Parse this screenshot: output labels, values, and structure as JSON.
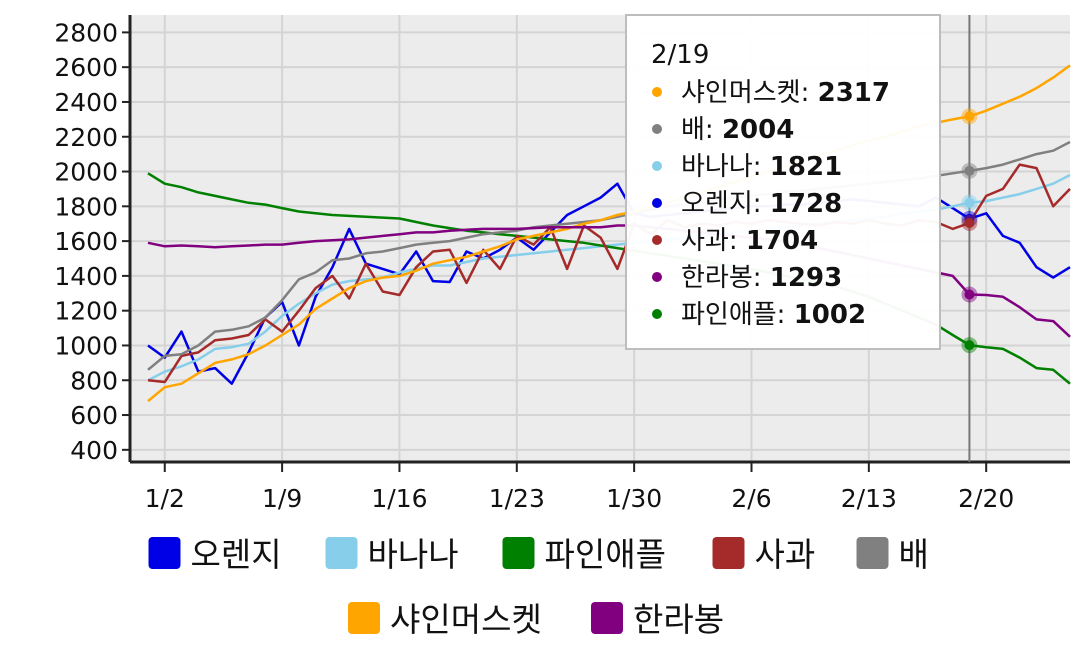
{
  "chart_data": {
    "type": "line",
    "x_labels": [
      "1/2",
      "1/9",
      "1/16",
      "1/23",
      "1/30",
      "2/6",
      "2/13",
      "2/20"
    ],
    "x": [
      "1/1",
      "1/2",
      "1/3",
      "1/4",
      "1/5",
      "1/6",
      "1/7",
      "1/8",
      "1/9",
      "1/10",
      "1/11",
      "1/12",
      "1/13",
      "1/14",
      "1/15",
      "1/16",
      "1/17",
      "1/18",
      "1/19",
      "1/20",
      "1/21",
      "1/22",
      "1/23",
      "1/24",
      "1/25",
      "1/26",
      "1/27",
      "1/28",
      "1/29",
      "1/30",
      "1/31",
      "2/1",
      "2/2",
      "2/3",
      "2/4",
      "2/5",
      "2/6",
      "2/7",
      "2/8",
      "2/9",
      "2/10",
      "2/11",
      "2/12",
      "2/13",
      "2/14",
      "2/15",
      "2/16",
      "2/17",
      "2/18",
      "2/19",
      "2/20",
      "2/21",
      "2/22",
      "2/23",
      "2/24",
      "2/25"
    ],
    "y_ticks": [
      400,
      600,
      800,
      1000,
      1200,
      1400,
      1600,
      1800,
      2000,
      2200,
      2400,
      2600,
      2800
    ],
    "ylim": [
      330,
      2900
    ],
    "grid": true,
    "legend_position": "bottom",
    "series": [
      {
        "name": "오렌지",
        "color": "#0000e6",
        "values": [
          1000,
          930,
          1080,
          850,
          870,
          780,
          960,
          1160,
          1250,
          1000,
          1280,
          1450,
          1670,
          1470,
          1440,
          1410,
          1540,
          1370,
          1365,
          1540,
          1500,
          1550,
          1620,
          1550,
          1650,
          1750,
          1800,
          1850,
          1930,
          1760,
          1740,
          1750,
          1760,
          1770,
          1780,
          1790,
          1800,
          1800,
          1810,
          1810,
          1820,
          1830,
          1840,
          1830,
          1820,
          1810,
          1800,
          1850,
          1790,
          1728,
          1760,
          1630,
          1590,
          1450,
          1390,
          1450
        ]
      },
      {
        "name": "바나나",
        "color": "#87ceeb",
        "values": [
          800,
          850,
          880,
          920,
          980,
          990,
          1010,
          1080,
          1170,
          1240,
          1300,
          1350,
          1370,
          1380,
          1390,
          1420,
          1440,
          1460,
          1460,
          1480,
          1500,
          1510,
          1520,
          1530,
          1540,
          1550,
          1560,
          1570,
          1580,
          1590,
          1600,
          1610,
          1620,
          1630,
          1640,
          1650,
          1660,
          1670,
          1680,
          1690,
          1700,
          1710,
          1720,
          1730,
          1740,
          1760,
          1770,
          1780,
          1800,
          1821,
          1830,
          1850,
          1870,
          1900,
          1930,
          1980
        ]
      },
      {
        "name": "파인애플",
        "color": "#008000",
        "values": [
          1990,
          1930,
          1910,
          1880,
          1860,
          1840,
          1820,
          1810,
          1790,
          1770,
          1760,
          1750,
          1745,
          1740,
          1735,
          1730,
          1710,
          1690,
          1675,
          1660,
          1650,
          1640,
          1630,
          1620,
          1610,
          1600,
          1590,
          1575,
          1560,
          1545,
          1530,
          1515,
          1500,
          1485,
          1470,
          1455,
          1440,
          1420,
          1400,
          1380,
          1360,
          1340,
          1310,
          1280,
          1240,
          1200,
          1160,
          1120,
          1060,
          1002,
          990,
          980,
          930,
          870,
          860,
          780
        ]
      },
      {
        "name": "사과",
        "color": "#a52a2a",
        "values": [
          800,
          790,
          940,
          960,
          1030,
          1040,
          1060,
          1150,
          1080,
          1200,
          1330,
          1400,
          1270,
          1470,
          1310,
          1290,
          1450,
          1540,
          1550,
          1360,
          1550,
          1440,
          1630,
          1580,
          1680,
          1440,
          1690,
          1620,
          1440,
          1700,
          1640,
          1720,
          1680,
          1700,
          1690,
          1710,
          1700,
          1720,
          1710,
          1700,
          1690,
          1710,
          1700,
          1720,
          1700,
          1690,
          1720,
          1710,
          1670,
          1704,
          1860,
          1900,
          2040,
          2020,
          1800,
          1900
        ]
      },
      {
        "name": "배",
        "color": "#808080",
        "values": [
          860,
          940,
          950,
          1000,
          1080,
          1090,
          1110,
          1160,
          1260,
          1380,
          1420,
          1490,
          1500,
          1530,
          1540,
          1560,
          1580,
          1590,
          1600,
          1620,
          1640,
          1650,
          1660,
          1680,
          1690,
          1700,
          1710,
          1720,
          1740,
          1760,
          1780,
          1800,
          1810,
          1820,
          1840,
          1850,
          1860,
          1870,
          1880,
          1890,
          1900,
          1910,
          1920,
          1930,
          1940,
          1950,
          1960,
          1975,
          1990,
          2004,
          2020,
          2040,
          2070,
          2100,
          2120,
          2170
        ]
      },
      {
        "name": "샤인머스켓",
        "color": "#ffa500",
        "values": [
          680,
          760,
          780,
          840,
          900,
          920,
          950,
          1000,
          1060,
          1120,
          1210,
          1270,
          1330,
          1370,
          1390,
          1400,
          1430,
          1470,
          1490,
          1510,
          1540,
          1570,
          1610,
          1630,
          1650,
          1670,
          1700,
          1720,
          1750,
          1770,
          1790,
          1820,
          1850,
          1880,
          1910,
          1940,
          1970,
          2000,
          2030,
          2060,
          2090,
          2120,
          2150,
          2180,
          2200,
          2230,
          2260,
          2280,
          2300,
          2317,
          2350,
          2390,
          2430,
          2480,
          2540,
          2610
        ]
      },
      {
        "name": "한라봉",
        "color": "#800080",
        "values": [
          1590,
          1570,
          1575,
          1570,
          1565,
          1570,
          1575,
          1580,
          1580,
          1590,
          1600,
          1605,
          1610,
          1620,
          1630,
          1640,
          1650,
          1650,
          1660,
          1665,
          1670,
          1670,
          1670,
          1675,
          1680,
          1680,
          1680,
          1680,
          1690,
          1690,
          1680,
          1670,
          1660,
          1650,
          1640,
          1630,
          1620,
          1610,
          1600,
          1580,
          1560,
          1540,
          1520,
          1500,
          1480,
          1460,
          1440,
          1420,
          1400,
          1293,
          1290,
          1280,
          1220,
          1150,
          1140,
          1050
        ]
      }
    ],
    "tooltip": {
      "title": "2/19",
      "entries": [
        {
          "name": "샤인머스켓",
          "value": "2317",
          "color": "#ffa500"
        },
        {
          "name": "배",
          "value": "2004",
          "color": "#808080"
        },
        {
          "name": "바나나",
          "value": "1821",
          "color": "#87ceeb"
        },
        {
          "name": "오렌지",
          "value": "1728",
          "color": "#0000e6"
        },
        {
          "name": "사과",
          "value": "1704",
          "color": "#a52a2a"
        },
        {
          "name": "한라봉",
          "value": "1293",
          "color": "#800080"
        },
        {
          "name": "파인애플",
          "value": "1002",
          "color": "#008000"
        }
      ]
    },
    "legend": [
      {
        "name": "오렌지",
        "color": "#0000e6"
      },
      {
        "name": "바나나",
        "color": "#87ceeb"
      },
      {
        "name": "파인애플",
        "color": "#008000"
      },
      {
        "name": "사과",
        "color": "#a52a2a"
      },
      {
        "name": "배",
        "color": "#808080"
      },
      {
        "name": "샤인머스켓",
        "color": "#ffa500"
      },
      {
        "name": "한라봉",
        "color": "#800080"
      }
    ]
  }
}
